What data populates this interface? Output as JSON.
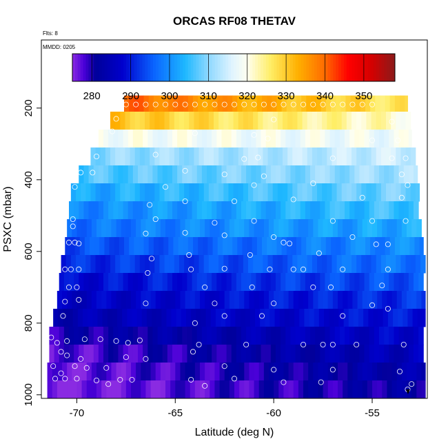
{
  "chart_data": {
    "type": "heatmap",
    "title": "ORCAS RF08 THETAV",
    "flights_label": "Flts: 8",
    "date_label": "MMDD: 0205",
    "xlabel": "Latitude (deg N)",
    "ylabel": "PSXC (mbar)",
    "xlim": [
      -71.8,
      -52.2
    ],
    "ylim": [
      1010,
      10
    ],
    "x_ticks": [
      -70,
      -65,
      -60,
      -55
    ],
    "x_tick_labels": [
      "-70",
      "-65",
      "-60",
      "-55"
    ],
    "y_ticks": [
      200,
      400,
      600,
      800,
      1000
    ],
    "y_tick_labels": [
      "200",
      "400",
      "600",
      "800",
      "1000"
    ],
    "colorbar": {
      "min": 275,
      "max": 358,
      "ticks": [
        280,
        290,
        300,
        310,
        320,
        330,
        340,
        350
      ],
      "tick_labels": [
        "280",
        "290",
        "300",
        "310",
        "320",
        "330",
        "340",
        "350"
      ],
      "stops": [
        [
          275,
          "#8a2be2"
        ],
        [
          278,
          "#4a00d8"
        ],
        [
          281,
          "#00009a"
        ],
        [
          288,
          "#0000cd"
        ],
        [
          296,
          "#0a64ff"
        ],
        [
          304,
          "#1eb8ff"
        ],
        [
          310,
          "#8ed8ff"
        ],
        [
          316,
          "#dff4ff"
        ],
        [
          320,
          "#fffff0"
        ],
        [
          326,
          "#ffee66"
        ],
        [
          333,
          "#ffb000"
        ],
        [
          340,
          "#ff6a00"
        ],
        [
          346,
          "#ff0000"
        ],
        [
          352,
          "#d40000"
        ],
        [
          358,
          "#8b1a1a"
        ]
      ]
    },
    "levels": [
      {
        "p": 190,
        "x0": -67.6,
        "x1": -53.2,
        "left": 340,
        "right": 326
      },
      {
        "p": 235,
        "x0": -68.3,
        "x1": -53.0,
        "left": 331,
        "right": 321
      },
      {
        "p": 285,
        "x0": -68.9,
        "x1": -53.0,
        "left": 319,
        "right": 318
      },
      {
        "p": 335,
        "x0": -69.3,
        "x1": -52.8,
        "left": 310,
        "right": 315
      },
      {
        "p": 385,
        "x0": -69.9,
        "x1": -52.7,
        "left": 306,
        "right": 312
      },
      {
        "p": 435,
        "x0": -70.3,
        "x1": -52.6,
        "left": 302,
        "right": 309
      },
      {
        "p": 485,
        "x0": -70.4,
        "x1": -52.6,
        "left": 299,
        "right": 306
      },
      {
        "p": 535,
        "x0": -70.5,
        "x1": -52.4,
        "left": 297,
        "right": 303
      },
      {
        "p": 585,
        "x0": -70.6,
        "x1": -52.4,
        "left": 294,
        "right": 300
      },
      {
        "p": 635,
        "x0": -70.8,
        "x1": -52.3,
        "left": 291,
        "right": 298
      },
      {
        "p": 685,
        "x0": -70.9,
        "x1": -52.3,
        "left": 288,
        "right": 295
      },
      {
        "p": 735,
        "x0": -71.0,
        "x1": -52.3,
        "left": 286,
        "right": 292
      },
      {
        "p": 785,
        "x0": -71.2,
        "x1": -52.3,
        "left": 284,
        "right": 290
      },
      {
        "p": 835,
        "x0": -71.4,
        "x1": -52.3,
        "left": 280,
        "right": 288
      },
      {
        "p": 885,
        "x0": -71.4,
        "x1": -52.3,
        "left": 277,
        "right": 286
      },
      {
        "p": 935,
        "x0": -71.5,
        "x1": -52.3,
        "left": 276,
        "right": 284
      },
      {
        "p": 985,
        "x0": -71.5,
        "x1": -52.3,
        "left": 275,
        "right": 282
      }
    ],
    "level_thickness": 50,
    "observations": [
      [
        -67.5,
        190
      ],
      [
        -67,
        190
      ],
      [
        -66.5,
        190
      ],
      [
        -66,
        190
      ],
      [
        -65.5,
        190
      ],
      [
        -65,
        190
      ],
      [
        -64.5,
        190
      ],
      [
        -64,
        190
      ],
      [
        -63.5,
        190
      ],
      [
        -63,
        190
      ],
      [
        -62.5,
        190
      ],
      [
        -62,
        190
      ],
      [
        -61.5,
        190
      ],
      [
        -61,
        190
      ],
      [
        -60.5,
        190
      ],
      [
        -60,
        190
      ],
      [
        -59.5,
        190
      ],
      [
        -59,
        190
      ],
      [
        -58.5,
        190
      ],
      [
        -58,
        190
      ],
      [
        -57.5,
        190
      ],
      [
        -57,
        190
      ],
      [
        -56.5,
        190
      ],
      [
        -56,
        190
      ],
      [
        -55.5,
        190
      ],
      [
        -55,
        190
      ],
      [
        -68,
        230
      ],
      [
        -60,
        232
      ],
      [
        -54,
        238
      ],
      [
        -68.2,
        265
      ],
      [
        -64,
        270
      ],
      [
        -61,
        275
      ],
      [
        -60.3,
        285
      ],
      [
        -55,
        290
      ],
      [
        -53.7,
        290
      ],
      [
        -66,
        330
      ],
      [
        -69,
        335
      ],
      [
        -60.8,
        338
      ],
      [
        -61.5,
        342
      ],
      [
        -57,
        340
      ],
      [
        -54,
        340
      ],
      [
        -53.3,
        340
      ],
      [
        -69.8,
        380
      ],
      [
        -69.2,
        380
      ],
      [
        -64.5,
        375
      ],
      [
        -62.5,
        385
      ],
      [
        -60.5,
        390
      ],
      [
        -53.5,
        385
      ],
      [
        -70.1,
        420
      ],
      [
        -65.5,
        420
      ],
      [
        -61,
        415
      ],
      [
        -58,
        410
      ],
      [
        -53.2,
        415
      ],
      [
        -66.3,
        470
      ],
      [
        -64.5,
        460
      ],
      [
        -62,
        460
      ],
      [
        -59,
        455
      ],
      [
        -55.5,
        450
      ],
      [
        -53.5,
        450
      ],
      [
        -70.2,
        510
      ],
      [
        -66,
        510
      ],
      [
        -63,
        520
      ],
      [
        -61,
        515
      ],
      [
        -57,
        515
      ],
      [
        -55,
        515
      ],
      [
        -53.3,
        515
      ],
      [
        -70.2,
        530
      ],
      [
        -66.5,
        550
      ],
      [
        -64.5,
        548
      ],
      [
        -62.5,
        555
      ],
      [
        -60,
        560
      ],
      [
        -56,
        560
      ],
      [
        -70.4,
        575
      ],
      [
        -70.1,
        575
      ],
      [
        -69.9,
        578
      ],
      [
        -59.5,
        575
      ],
      [
        -59.2,
        578
      ],
      [
        -54.8,
        580
      ],
      [
        -54.2,
        580
      ],
      [
        -66.2,
        620
      ],
      [
        -64.3,
        610
      ],
      [
        -61.2,
        610
      ],
      [
        -57.7,
        605
      ],
      [
        -70.6,
        650
      ],
      [
        -70.3,
        650
      ],
      [
        -69.9,
        650
      ],
      [
        -64.2,
        650
      ],
      [
        -62.5,
        648
      ],
      [
        -60.2,
        650
      ],
      [
        -59,
        650
      ],
      [
        -58.5,
        650
      ],
      [
        -56.5,
        650
      ],
      [
        -54.2,
        650
      ],
      [
        -70.4,
        700
      ],
      [
        -70,
        700
      ],
      [
        -66.4,
        660
      ],
      [
        -63.5,
        700
      ],
      [
        -61.1,
        700
      ],
      [
        -58,
        700
      ],
      [
        -57.1,
        700
      ],
      [
        -54.5,
        695
      ],
      [
        -70.6,
        740
      ],
      [
        -69.9,
        735
      ],
      [
        -66.5,
        745
      ],
      [
        -63,
        745
      ],
      [
        -60,
        745
      ],
      [
        -55,
        750
      ],
      [
        -54.2,
        760
      ],
      [
        -70.7,
        780
      ],
      [
        -64,
        800
      ],
      [
        -62.5,
        780
      ],
      [
        -60.6,
        780
      ],
      [
        -56.5,
        780
      ],
      [
        -71.3,
        840
      ],
      [
        -71,
        855
      ],
      [
        -70.5,
        850
      ],
      [
        -69.6,
        845
      ],
      [
        -68.8,
        845
      ],
      [
        -68,
        850
      ],
      [
        -67.4,
        855
      ],
      [
        -66.8,
        848
      ],
      [
        -63.8,
        860
      ],
      [
        -61.4,
        860
      ],
      [
        -58.5,
        860
      ],
      [
        -57.5,
        860
      ],
      [
        -57,
        860
      ],
      [
        -55.8,
        860
      ],
      [
        -53.4,
        860
      ],
      [
        -70.8,
        880
      ],
      [
        -70.5,
        890
      ],
      [
        -69.8,
        900
      ],
      [
        -67.5,
        895
      ],
      [
        -66.5,
        900
      ],
      [
        -64.1,
        880
      ],
      [
        -71.2,
        920
      ],
      [
        -70.1,
        920
      ],
      [
        -69.5,
        925
      ],
      [
        -68.5,
        925
      ],
      [
        -62.5,
        920
      ],
      [
        -60,
        930
      ],
      [
        -57,
        930
      ],
      [
        -53.6,
        935
      ],
      [
        -71.1,
        955
      ],
      [
        -70.6,
        955
      ],
      [
        -70,
        955
      ],
      [
        -69,
        960
      ],
      [
        -67.8,
        958
      ],
      [
        -67.2,
        958
      ],
      [
        -64.2,
        958
      ],
      [
        -62,
        955
      ],
      [
        -59.5,
        965
      ],
      [
        -57.6,
        965
      ],
      [
        -53,
        970
      ],
      [
        -53.2,
        985
      ],
      [
        -70.8,
        940
      ],
      [
        -68.4,
        970
      ],
      [
        -63.5,
        975
      ]
    ]
  }
}
